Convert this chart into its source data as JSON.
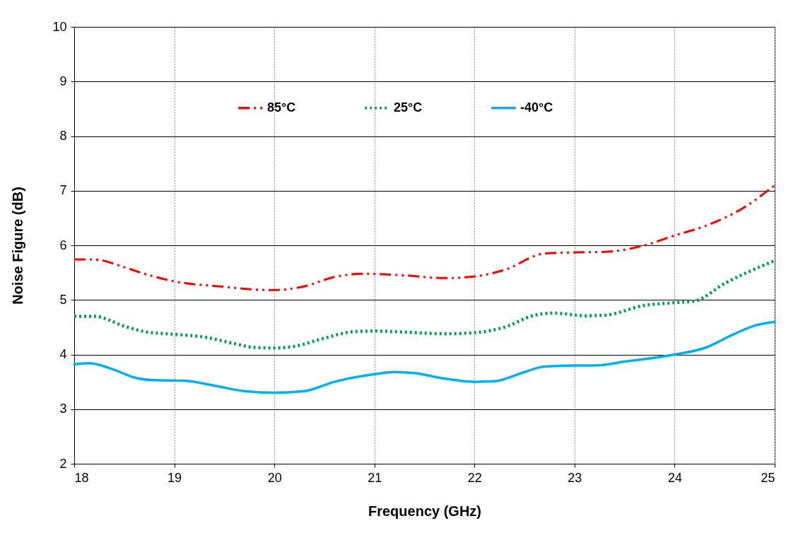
{
  "chart_data": {
    "type": "line",
    "xlabel": "Frequency (GHz)",
    "ylabel": "Noise Figure (dB)",
    "xlim": [
      18,
      25
    ],
    "xticks": [
      18,
      19,
      20,
      21,
      22,
      23,
      24,
      25
    ],
    "ylim": [
      2,
      10
    ],
    "yticks": [
      2,
      3,
      4,
      5,
      6,
      7,
      8,
      9,
      10
    ],
    "grid": true,
    "legend": "top",
    "marker": "none",
    "series": [
      {
        "name": "85°C",
        "color": "#ff0000",
        "line_style": "dashed",
        "x": [
          18,
          18.2,
          18.5,
          18.7,
          19,
          19.5,
          19.8,
          20,
          20.3,
          20.6,
          20.9,
          21.3,
          21.7,
          22,
          22.3,
          22.7,
          23,
          23.3,
          23.7,
          24,
          24.3,
          24.7,
          25
        ],
        "values": [
          5.74,
          5.74,
          5.6,
          5.48,
          5.34,
          5.24,
          5.19,
          5.18,
          5.25,
          5.42,
          5.48,
          5.45,
          5.4,
          5.43,
          5.55,
          5.85,
          5.87,
          5.88,
          6.0,
          6.18,
          6.35,
          6.7,
          7.1
        ]
      },
      {
        "name": "25°C",
        "color": "#00a050",
        "line_style": "dotted",
        "x": [
          18,
          18.2,
          18.5,
          18.7,
          19,
          19.3,
          19.6,
          19.8,
          20,
          20.2,
          20.5,
          20.8,
          21,
          21.3,
          21.7,
          22,
          22.3,
          22.6,
          22.8,
          23.1,
          23.3,
          23.7,
          24,
          24.2,
          24.5,
          25
        ],
        "values": [
          4.7,
          4.7,
          4.52,
          4.42,
          4.37,
          4.32,
          4.2,
          4.13,
          4.12,
          4.15,
          4.3,
          4.42,
          4.43,
          4.41,
          4.38,
          4.4,
          4.5,
          4.72,
          4.76,
          4.71,
          4.72,
          4.9,
          4.95,
          4.98,
          5.3,
          5.72
        ]
      },
      {
        "name": "-40°C",
        "color": "#00b0f0",
        "line_style": "solid",
        "x": [
          18,
          18.15,
          18.4,
          18.6,
          18.8,
          19.1,
          19.4,
          19.7,
          20,
          20.3,
          20.6,
          21,
          21.2,
          21.4,
          21.7,
          22,
          22.2,
          22.5,
          22.7,
          23,
          23.2,
          23.5,
          24,
          24.3,
          24.6,
          24.8,
          25
        ],
        "values": [
          3.82,
          3.84,
          3.72,
          3.58,
          3.53,
          3.52,
          3.43,
          3.33,
          3.3,
          3.33,
          3.5,
          3.64,
          3.68,
          3.66,
          3.56,
          3.5,
          3.51,
          3.68,
          3.78,
          3.8,
          3.8,
          3.87,
          4.0,
          4.12,
          4.38,
          4.53,
          4.6
        ]
      }
    ]
  }
}
